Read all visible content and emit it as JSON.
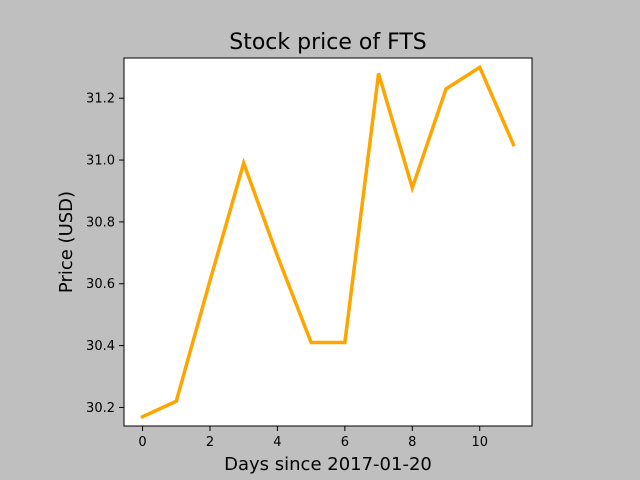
{
  "chart_data": {
    "type": "line",
    "title": "Stock price of FTS",
    "xlabel": "Days since 2017-01-20",
    "ylabel": "Price (USD)",
    "x": [
      0,
      1,
      2,
      3,
      4,
      5,
      6,
      7,
      8,
      9,
      10,
      11
    ],
    "series": [
      {
        "values": [
          30.17,
          30.22,
          30.61,
          30.99,
          30.69,
          30.41,
          30.41,
          31.28,
          30.91,
          31.23,
          31.3,
          31.05
        ],
        "color": "#ffa500"
      }
    ],
    "xlim": [
      -0.55,
      11.55
    ],
    "ylim": [
      30.14,
      31.33
    ],
    "xticks": [
      "0",
      "2",
      "4",
      "6",
      "8",
      "10"
    ],
    "yticks": [
      "30.2",
      "30.4",
      "30.6",
      "30.8",
      "31.0",
      "31.2"
    ],
    "grid": false,
    "colors": {
      "figure_background": "#bfbfbf",
      "plot_background": "#ffffff",
      "line": "#ffa500"
    }
  }
}
